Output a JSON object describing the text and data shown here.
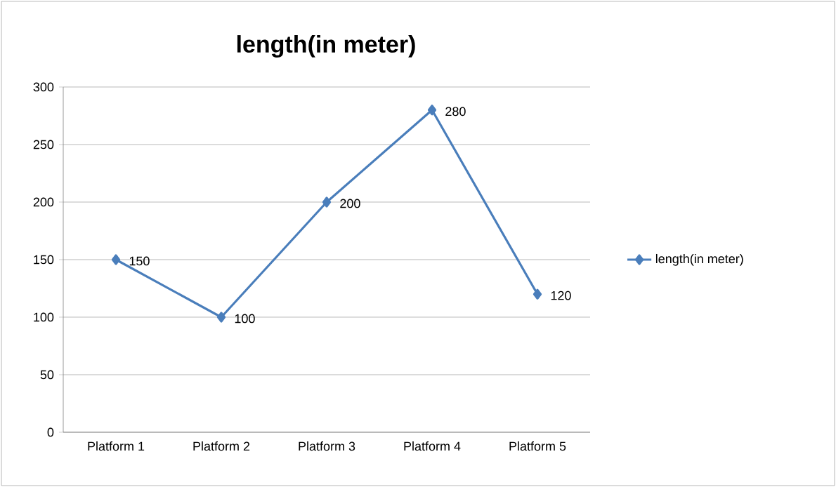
{
  "chart_data": {
    "type": "line",
    "title": "length(in meter)",
    "categories": [
      "Platform 1",
      "Platform 2",
      "Platform 3",
      "Platform 4",
      "Platform 5"
    ],
    "series": [
      {
        "name": "length(in meter)",
        "color": "#4a7ebb",
        "values": [
          150,
          100,
          200,
          280,
          120
        ]
      }
    ],
    "ylim": [
      0,
      300
    ],
    "yticks": [
      0,
      50,
      100,
      150,
      200,
      250,
      300
    ],
    "grid": "y",
    "legend": "right",
    "marker": "diamond",
    "line_style": "solid",
    "data_labels": true
  }
}
